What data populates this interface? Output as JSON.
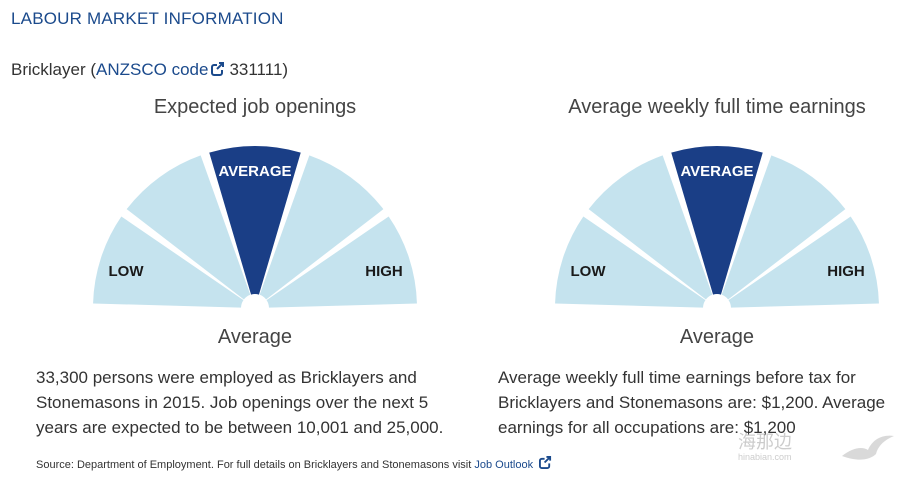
{
  "header": {
    "title": "LABOUR MARKET INFORMATION"
  },
  "occupation": {
    "name": "Bricklayer (",
    "code_link_label": "ANZSCO code",
    "code": "331111)"
  },
  "panels": [
    {
      "heading": "Expected job openings",
      "gauge": {
        "active_label": "AVERAGE",
        "low_label": "LOW",
        "high_label": "HIGH",
        "active_segment": 2,
        "segment_count": 5,
        "active_color": "#1a3e86",
        "inactive_color": "#c5e3ee"
      },
      "result": "Average",
      "description": [
        "33,300 persons were employed as Bricklayers and",
        "Stonemasons in 2015. Job openings over the next 5",
        "years are expected to be between 10,001 and 25,000."
      ]
    },
    {
      "heading": "Average weekly full time earnings",
      "gauge": {
        "active_label": "AVERAGE",
        "low_label": "LOW",
        "high_label": "HIGH",
        "active_segment": 2,
        "segment_count": 5,
        "active_color": "#1a3e86",
        "inactive_color": "#c5e3ee"
      },
      "result": "Average",
      "description": [
        "Average weekly full time earnings before tax for",
        "Bricklayers and Stonemasons are: $1,200. Average",
        "earnings for all occupations are: $1,200"
      ]
    }
  ],
  "footer": {
    "source_text": "Source: Department of Employment. For full details on Bricklayers and Stonemasons visit",
    "link_label": "Job Outlook"
  },
  "watermark": {
    "text": "海那边",
    "url": "hinabian.com"
  },
  "icons": {
    "code_link": "external-link-icon",
    "footer_link": "external-link-icon"
  }
}
